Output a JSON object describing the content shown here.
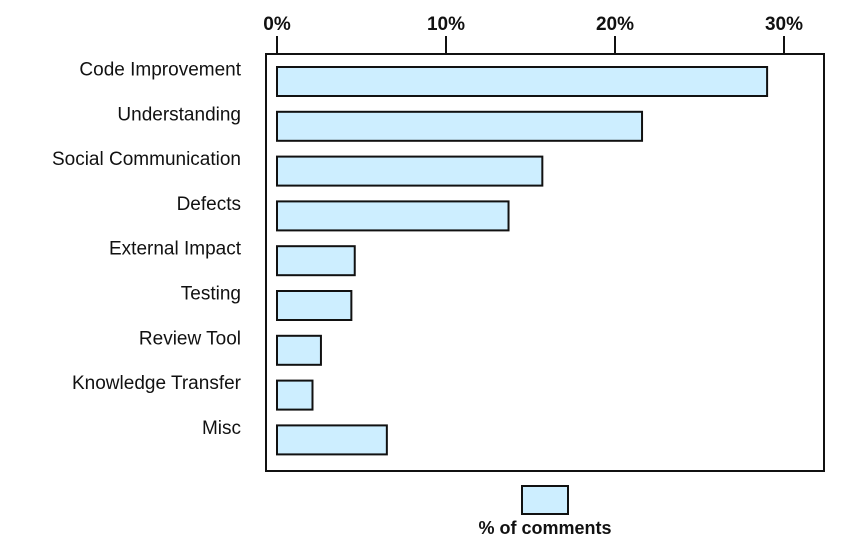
{
  "chart_data": {
    "type": "bar",
    "orientation": "horizontal",
    "categories": [
      "Code Improvement",
      "Understanding",
      "Social Communication",
      "Defects",
      "External Impact",
      "Testing",
      "Review Tool",
      "Knowledge Transfer",
      "Misc"
    ],
    "series": [
      {
        "name": "% of comments",
        "values": [
          29.0,
          21.6,
          15.7,
          13.7,
          4.6,
          4.4,
          2.6,
          2.1,
          6.5
        ]
      }
    ],
    "x_ticks": [
      {
        "value": 0,
        "label": "0%"
      },
      {
        "value": 10,
        "label": "10%"
      },
      {
        "value": 20,
        "label": "20%"
      },
      {
        "value": 30,
        "label": "30%"
      }
    ],
    "xlim": [
      0,
      32
    ],
    "axis_position": "top",
    "grid": false,
    "legend_position": "bottom-center",
    "colors": {
      "bar_fill": "#cdeeff",
      "bar_stroke": "#111111",
      "frame": "#111111"
    }
  }
}
